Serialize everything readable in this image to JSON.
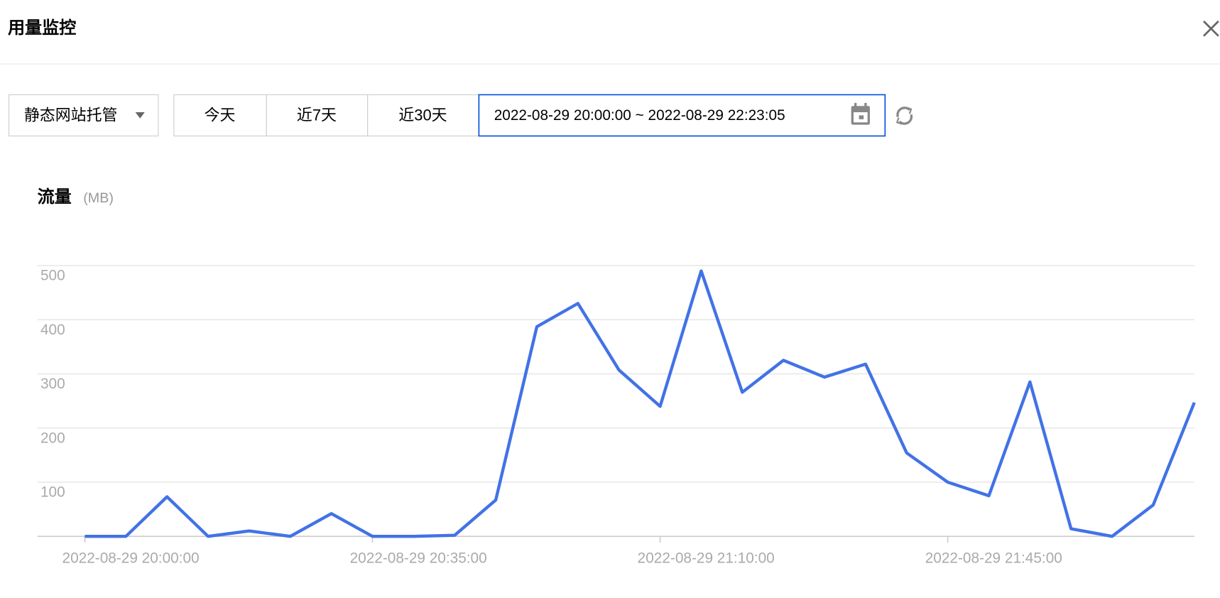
{
  "header": {
    "title": "用量监控"
  },
  "filters": {
    "dropdown": "静态网站托管",
    "buttons": [
      "今天",
      "近7天",
      "近30天"
    ],
    "date_range": "2022-08-29 20:00:00 ~ 2022-08-29 22:23:05"
  },
  "chart_data": {
    "type": "line",
    "title": "流量",
    "unit": "(MB)",
    "categories": [
      "2022-08-29 20:00:00",
      null,
      null,
      null,
      null,
      null,
      null,
      "2022-08-29 20:35:00",
      null,
      null,
      null,
      null,
      null,
      null,
      "2022-08-29 21:10:00",
      null,
      null,
      null,
      null,
      null,
      null,
      "2022-08-29 21:45:00",
      null,
      null,
      null,
      null,
      null,
      null
    ],
    "values": [
      0,
      0,
      73,
      0,
      10,
      0,
      42,
      0,
      0,
      2,
      67,
      387,
      430,
      307,
      240,
      490,
      266,
      325,
      294,
      318,
      154,
      100,
      75,
      285,
      14,
      0,
      58,
      247
    ],
    "color": "#4272e6",
    "ylim": [
      0,
      500
    ],
    "yticks": [
      100,
      200,
      300,
      400,
      500
    ],
    "grid": true
  }
}
